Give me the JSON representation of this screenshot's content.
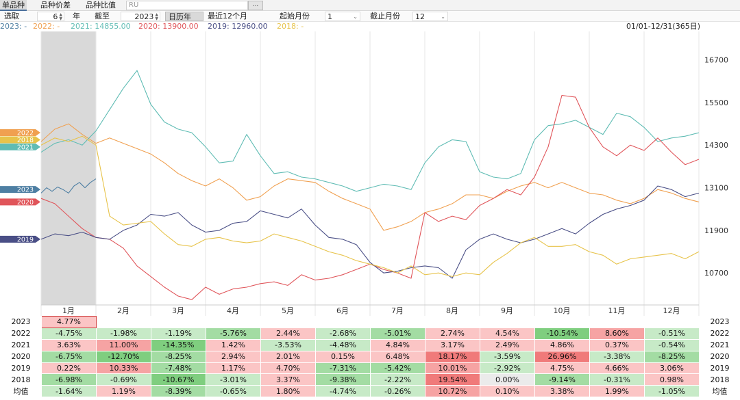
{
  "tabs": [
    "单品种",
    "品种价差",
    "品种比值"
  ],
  "code_value": "RU",
  "more_label": "...",
  "controls": {
    "select_label": "选取",
    "years_value": "6",
    "years_unit": "年",
    "until_label": "截至",
    "until_year": "2023",
    "calendar_btn": "日历年",
    "recent_btn": "最近12个月",
    "start_month_label": "起始月份",
    "start_month_value": "1",
    "end_month_label": "截止月份",
    "end_month_value": "12"
  },
  "legend": {
    "items": [
      {
        "text": "2023: -",
        "color": "#4e7fa3"
      },
      {
        "text": "2022: -",
        "color": "#f0a050"
      },
      {
        "text": "2021: 14855.00",
        "color": "#5fbcb4"
      },
      {
        "text": "2020: 13900.00",
        "color": "#e0555a"
      },
      {
        "text": "2019: 12960.00",
        "color": "#4a4f86"
      },
      {
        "text": "2018: -",
        "color": "#e7c34a"
      }
    ],
    "date_range": "01/01-12/31(365日)"
  },
  "chart_data": {
    "type": "line",
    "title": "",
    "xlabel": "",
    "ylabel": "",
    "ylim": [
      9800,
      17500
    ],
    "y_ticks": [
      10700,
      11900,
      13100,
      14300,
      15500,
      16700
    ],
    "x_ticks": [
      "1月",
      "2月",
      "3月",
      "4月",
      "5月",
      "6月",
      "7月",
      "8月",
      "9月",
      "10月",
      "11月",
      "12月"
    ],
    "x_domain": [
      1,
      13
    ],
    "highlight_month": "1月",
    "series": [
      {
        "name": "2023",
        "color": "#4e7fa3",
        "tag": "2023",
        "tag_value": 13050,
        "x": [
          1.0,
          1.1,
          1.2,
          1.3,
          1.4,
          1.5,
          1.6,
          1.7,
          1.8,
          1.9,
          2.0
        ],
        "y": [
          12950,
          13100,
          13000,
          13120,
          13050,
          12950,
          13150,
          13250,
          13100,
          13250,
          13350
        ]
      },
      {
        "name": "2022",
        "color": "#f0a050",
        "tag": "2022",
        "tag_value": 14650,
        "x": [
          1.0,
          1.25,
          1.5,
          1.75,
          2.0,
          2.25,
          2.5,
          2.75,
          3.0,
          3.25,
          3.5,
          3.75,
          4.0,
          4.25,
          4.5,
          4.75,
          5.0,
          5.25,
          5.5,
          5.75,
          6.0,
          6.25,
          6.5,
          6.75,
          7.0,
          7.25,
          7.5,
          7.75,
          8.0,
          8.25,
          8.5,
          8.75,
          9.0,
          9.25,
          9.5,
          9.75,
          10.0,
          10.25,
          10.5,
          10.75,
          11.0,
          11.25,
          11.5,
          11.75,
          12.0,
          12.25,
          12.5,
          12.75,
          13.0
        ],
        "y": [
          14400,
          14750,
          14900,
          14600,
          14350,
          14500,
          14350,
          14200,
          14050,
          13800,
          13500,
          13300,
          13150,
          13350,
          13100,
          12750,
          12850,
          13150,
          13350,
          13300,
          13250,
          13000,
          12800,
          12650,
          12500,
          11900,
          12000,
          12150,
          12400,
          12500,
          12650,
          12900,
          12900,
          12800,
          13000,
          13150,
          13250,
          13100,
          13250,
          13100,
          12950,
          12900,
          12750,
          12650,
          12800,
          13050,
          12950,
          12800,
          12700
        ]
      },
      {
        "name": "2021",
        "color": "#5fbcb4",
        "tag": "2021",
        "tag_value": 14250,
        "x": [
          1.0,
          1.25,
          1.5,
          1.75,
          2.0,
          2.25,
          2.5,
          2.75,
          3.0,
          3.25,
          3.5,
          3.75,
          4.0,
          4.25,
          4.5,
          4.75,
          5.0,
          5.25,
          5.5,
          5.75,
          6.0,
          6.25,
          6.5,
          6.75,
          7.0,
          7.25,
          7.5,
          7.75,
          8.0,
          8.25,
          8.5,
          8.75,
          9.0,
          9.25,
          9.5,
          9.75,
          10.0,
          10.25,
          10.5,
          10.75,
          11.0,
          11.25,
          11.5,
          11.75,
          12.0,
          12.25,
          12.5,
          12.75,
          13.0
        ],
        "y": [
          14100,
          14350,
          14450,
          14300,
          14700,
          15300,
          15900,
          16400,
          15450,
          14950,
          14750,
          14650,
          14250,
          13800,
          13850,
          14600,
          14000,
          13500,
          13550,
          13400,
          13350,
          13250,
          13150,
          13000,
          13100,
          13200,
          13150,
          13050,
          13800,
          14250,
          14450,
          14400,
          13550,
          13400,
          13350,
          13500,
          14450,
          14850,
          14900,
          15000,
          14800,
          14600,
          15200,
          15100,
          14800,
          14400,
          14500,
          14550,
          14650
        ]
      },
      {
        "name": "2020",
        "color": "#e0555a",
        "tag": "2020",
        "tag_value": 12700,
        "x": [
          1.0,
          1.25,
          1.5,
          1.75,
          2.0,
          2.25,
          2.5,
          2.75,
          3.0,
          3.25,
          3.5,
          3.75,
          4.0,
          4.25,
          4.5,
          4.75,
          5.0,
          5.25,
          5.5,
          5.75,
          6.0,
          6.25,
          6.5,
          6.75,
          7.0,
          7.25,
          7.5,
          7.75,
          8.0,
          8.25,
          8.5,
          8.75,
          9.0,
          9.25,
          9.5,
          9.75,
          10.0,
          10.25,
          10.5,
          10.75,
          11.0,
          11.25,
          11.5,
          11.75,
          12.0,
          12.25,
          12.5,
          12.75,
          13.0
        ],
        "y": [
          12800,
          12650,
          12300,
          11950,
          11700,
          11650,
          11400,
          10900,
          10600,
          10300,
          10050,
          9950,
          10300,
          10100,
          10250,
          10300,
          10400,
          10450,
          10350,
          10650,
          10500,
          10550,
          10650,
          10800,
          10950,
          10800,
          10700,
          10550,
          12400,
          12150,
          12300,
          12200,
          12600,
          12800,
          13050,
          12900,
          13400,
          14250,
          15700,
          15650,
          14800,
          14250,
          14000,
          14300,
          14150,
          14500,
          14100,
          13750,
          13900
        ]
      },
      {
        "name": "2019",
        "color": "#4a4f86",
        "tag": "2019",
        "tag_value": 11650,
        "x": [
          1.0,
          1.25,
          1.5,
          1.75,
          2.0,
          2.25,
          2.5,
          2.75,
          3.0,
          3.25,
          3.5,
          3.75,
          4.0,
          4.25,
          4.5,
          4.75,
          5.0,
          5.25,
          5.5,
          5.75,
          6.0,
          6.25,
          6.5,
          6.75,
          7.0,
          7.25,
          7.5,
          7.75,
          8.0,
          8.25,
          8.5,
          8.75,
          9.0,
          9.25,
          9.5,
          9.75,
          10.0,
          10.25,
          10.5,
          10.75,
          11.0,
          11.25,
          11.5,
          11.75,
          12.0,
          12.25,
          12.5,
          12.75,
          13.0
        ],
        "y": [
          11650,
          11800,
          11750,
          11850,
          11700,
          11650,
          11900,
          12050,
          12350,
          12300,
          12400,
          12050,
          11850,
          11900,
          12100,
          12150,
          12450,
          12350,
          12250,
          12500,
          12050,
          11700,
          11650,
          11500,
          11000,
          10700,
          10750,
          10850,
          10900,
          10850,
          10550,
          11350,
          11650,
          11800,
          11650,
          11550,
          11650,
          11800,
          11950,
          11800,
          12100,
          12350,
          12500,
          12600,
          12750,
          13150,
          13050,
          12850,
          12950
        ]
      },
      {
        "name": "2018",
        "color": "#e7c34a",
        "tag": "2018",
        "tag_value": 14450,
        "x": [
          1.0,
          1.25,
          1.5,
          1.75,
          2.0,
          2.25,
          2.5,
          2.75,
          3.0,
          3.25,
          3.5,
          3.75,
          4.0,
          4.25,
          4.5,
          4.75,
          5.0,
          5.25,
          5.5,
          5.75,
          6.0,
          6.25,
          6.5,
          6.75,
          7.0,
          7.25,
          7.5,
          7.75,
          8.0,
          8.25,
          8.5,
          8.75,
          9.0,
          9.25,
          9.5,
          9.75,
          10.0,
          10.25,
          10.5,
          10.75,
          11.0,
          11.25,
          11.5,
          11.75,
          12.0,
          12.25,
          12.5,
          12.75,
          13.0
        ],
        "y": [
          14300,
          14500,
          14400,
          14550,
          14300,
          12300,
          12050,
          12100,
          12150,
          11800,
          11500,
          11450,
          11650,
          11700,
          11600,
          11550,
          11600,
          11800,
          11700,
          11600,
          11450,
          11300,
          11200,
          11050,
          10950,
          10850,
          10700,
          10900,
          10650,
          10700,
          10600,
          10700,
          10650,
          11000,
          11250,
          11550,
          11700,
          11450,
          11450,
          11500,
          11300,
          11200,
          10950,
          11100,
          11150,
          11200,
          11250,
          11100,
          11300
        ]
      }
    ]
  },
  "table": {
    "rows": [
      {
        "year": "2023",
        "cells": [
          "4.77%",
          "",
          "",
          "",
          "",
          "",
          "",
          "",
          "",
          "",
          "",
          ""
        ]
      },
      {
        "year": "2022",
        "cells": [
          "-4.75%",
          "-1.98%",
          "-1.19%",
          "-5.76%",
          "2.44%",
          "-2.68%",
          "-5.01%",
          "2.74%",
          "4.54%",
          "-10.54%",
          "8.60%",
          "-0.51%"
        ]
      },
      {
        "year": "2021",
        "cells": [
          "3.63%",
          "11.00%",
          "-14.35%",
          "1.42%",
          "-3.53%",
          "-4.48%",
          "4.84%",
          "3.17%",
          "2.49%",
          "4.86%",
          "0.37%",
          "-0.54%"
        ]
      },
      {
        "year": "2020",
        "cells": [
          "-6.75%",
          "-12.70%",
          "-8.25%",
          "2.94%",
          "2.01%",
          "0.15%",
          "6.48%",
          "18.17%",
          "-3.59%",
          "26.96%",
          "-3.38%",
          "-8.25%"
        ]
      },
      {
        "year": "2019",
        "cells": [
          "0.22%",
          "10.33%",
          "-7.48%",
          "1.17%",
          "4.70%",
          "-7.31%",
          "-5.42%",
          "10.01%",
          "-2.92%",
          "4.75%",
          "4.66%",
          "3.06%"
        ]
      },
      {
        "year": "2018",
        "cells": [
          "-6.98%",
          "-0.69%",
          "-10.67%",
          "-3.01%",
          "3.37%",
          "-9.38%",
          "-2.22%",
          "19.54%",
          "0.00%",
          "-9.14%",
          "-0.31%",
          "0.98%"
        ]
      },
      {
        "year": "均值",
        "cells": [
          "-1.64%",
          "1.19%",
          "-8.39%",
          "-0.65%",
          "1.80%",
          "-4.74%",
          "-0.26%",
          "10.72%",
          "0.10%",
          "3.38%",
          "1.99%",
          "-1.05%"
        ]
      }
    ]
  }
}
